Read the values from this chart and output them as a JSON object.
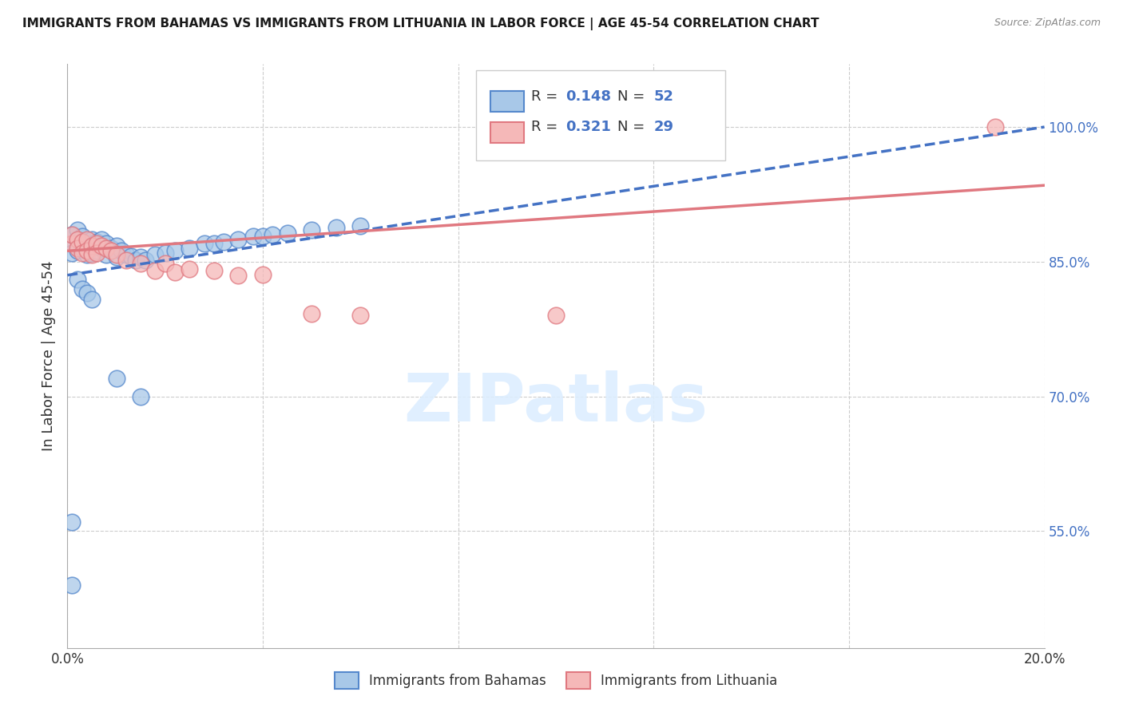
{
  "title": "IMMIGRANTS FROM BAHAMAS VS IMMIGRANTS FROM LITHUANIA IN LABOR FORCE | AGE 45-54 CORRELATION CHART",
  "source": "Source: ZipAtlas.com",
  "ylabel": "In Labor Force | Age 45-54",
  "x_min": 0.0,
  "x_max": 0.2,
  "y_min": 0.42,
  "y_max": 1.07,
  "x_ticks": [
    0.0,
    0.04,
    0.08,
    0.12,
    0.16,
    0.2
  ],
  "x_tick_labels": [
    "0.0%",
    "",
    "",
    "",
    "",
    "20.0%"
  ],
  "y_tick_labels_right": [
    "100.0%",
    "85.0%",
    "70.0%",
    "55.0%"
  ],
  "y_tick_values_right": [
    1.0,
    0.85,
    0.7,
    0.55
  ],
  "color_bahamas": "#a8c8e8",
  "color_bahamas_edge": "#5588cc",
  "color_bahamas_line": "#4472c4",
  "color_lithuania": "#f5b8b8",
  "color_lithuania_edge": "#e07880",
  "color_lithuania_line": "#e07880",
  "color_axis_right": "#4472c4",
  "color_text_blue": "#4472c4",
  "color_grid": "#cccccc",
  "watermark_color": "#ddeeff",
  "bahamas_x": [
    0.001,
    0.001,
    0.001,
    0.002,
    0.002,
    0.002,
    0.003,
    0.003,
    0.003,
    0.004,
    0.004,
    0.005,
    0.005,
    0.005,
    0.006,
    0.006,
    0.007,
    0.007,
    0.008,
    0.008,
    0.009,
    0.01,
    0.01,
    0.011,
    0.012,
    0.013,
    0.014,
    0.015,
    0.016,
    0.018,
    0.02,
    0.022,
    0.025,
    0.028,
    0.03,
    0.032,
    0.035,
    0.038,
    0.04,
    0.042,
    0.045,
    0.05,
    0.055,
    0.06,
    0.002,
    0.003,
    0.004,
    0.005,
    0.01,
    0.015,
    0.001,
    0.001
  ],
  "bahamas_y": [
    0.87,
    0.86,
    0.88,
    0.875,
    0.862,
    0.885,
    0.878,
    0.865,
    0.872,
    0.87,
    0.858,
    0.875,
    0.86,
    0.868,
    0.872,
    0.862,
    0.875,
    0.865,
    0.87,
    0.858,
    0.865,
    0.868,
    0.855,
    0.862,
    0.858,
    0.856,
    0.852,
    0.855,
    0.852,
    0.858,
    0.86,
    0.862,
    0.865,
    0.87,
    0.87,
    0.872,
    0.875,
    0.878,
    0.878,
    0.88,
    0.882,
    0.885,
    0.888,
    0.89,
    0.83,
    0.82,
    0.815,
    0.808,
    0.72,
    0.7,
    0.56,
    0.49
  ],
  "lithuania_x": [
    0.001,
    0.001,
    0.002,
    0.002,
    0.003,
    0.003,
    0.004,
    0.004,
    0.005,
    0.005,
    0.006,
    0.006,
    0.007,
    0.008,
    0.009,
    0.01,
    0.012,
    0.015,
    0.018,
    0.02,
    0.022,
    0.025,
    0.03,
    0.035,
    0.04,
    0.05,
    0.06,
    0.1,
    0.19
  ],
  "lithuania_y": [
    0.87,
    0.88,
    0.875,
    0.865,
    0.872,
    0.86,
    0.875,
    0.862,
    0.868,
    0.858,
    0.87,
    0.86,
    0.868,
    0.865,
    0.862,
    0.858,
    0.852,
    0.848,
    0.84,
    0.848,
    0.838,
    0.842,
    0.84,
    0.835,
    0.836,
    0.792,
    0.79,
    0.79,
    1.0
  ]
}
